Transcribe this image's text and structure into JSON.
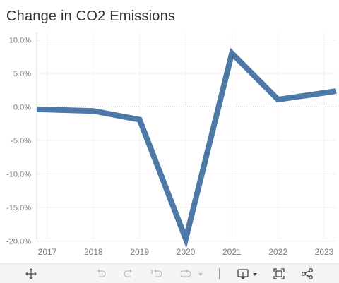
{
  "chart_data": {
    "type": "line",
    "title": "Change in CO2 Emissions",
    "xlabel": "",
    "ylabel": "",
    "x": [
      "2017",
      "2018",
      "2019",
      "2020",
      "2021",
      "2022",
      "2023"
    ],
    "series": [
      {
        "values": [
          -0.4,
          -0.6,
          -1.9,
          -19.7,
          8.0,
          1.1,
          2.1
        ]
      }
    ],
    "ylim": [
      -21,
      11
    ],
    "yticks": [
      10.0,
      5.0,
      0.0,
      -5.0,
      -10.0,
      -15.0,
      -20.0
    ],
    "ytick_labels": [
      "10.0%",
      "5.0%",
      "0.0%",
      "-5.0%",
      "-10.0%",
      "-15.0%",
      "-20.0%"
    ],
    "grid": true,
    "line_color": "#4e79a7"
  },
  "toolbar": {
    "items": [
      {
        "name": "pan-icon",
        "enabled": true
      },
      {
        "name": "undo-icon",
        "enabled": false
      },
      {
        "name": "redo-icon",
        "enabled": false
      },
      {
        "name": "revert-icon",
        "enabled": false
      },
      {
        "name": "refresh-icon",
        "enabled": false
      },
      {
        "name": "download-icon",
        "enabled": true
      },
      {
        "name": "fullscreen-icon",
        "enabled": true
      },
      {
        "name": "share-icon",
        "enabled": true
      }
    ]
  }
}
